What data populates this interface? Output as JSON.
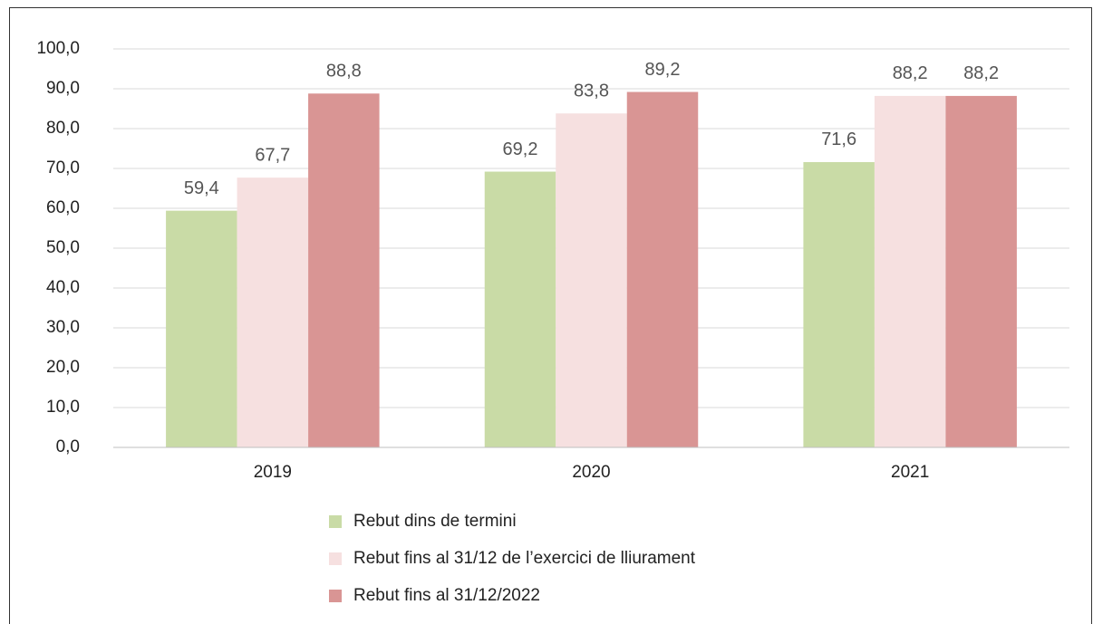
{
  "chart_data": {
    "type": "bar",
    "categories": [
      "2019",
      "2020",
      "2021"
    ],
    "series": [
      {
        "name": "Rebut dins de termini",
        "color": "#c9dba6",
        "values": [
          59.4,
          69.2,
          71.6
        ],
        "value_labels": [
          "59,4",
          "69,2",
          "71,6"
        ]
      },
      {
        "name": "Rebut fins al 31/12 de l’exercici de lliurament",
        "color": "#f6e0e0",
        "values": [
          67.7,
          83.8,
          88.2
        ],
        "value_labels": [
          "67,7",
          "83,8",
          "88,2"
        ]
      },
      {
        "name": "Rebut fins al 31/12/2022",
        "color": "#d99594",
        "values": [
          88.8,
          89.2,
          88.2
        ],
        "value_labels": [
          "88,8",
          "89,2",
          "88,2"
        ]
      }
    ],
    "ylim": [
      0,
      100
    ],
    "yticks": [
      {
        "value": 0,
        "label": "0,0"
      },
      {
        "value": 10,
        "label": "10,0"
      },
      {
        "value": 20,
        "label": "20,0"
      },
      {
        "value": 30,
        "label": "30,0"
      },
      {
        "value": 40,
        "label": "40,0"
      },
      {
        "value": 50,
        "label": "50,0"
      },
      {
        "value": 60,
        "label": "60,0"
      },
      {
        "value": 70,
        "label": "70,0"
      },
      {
        "value": 80,
        "label": "80,0"
      },
      {
        "value": 90,
        "label": "90,0"
      },
      {
        "value": 100,
        "label": "100,0"
      }
    ],
    "grid": true,
    "legend": "bottom"
  }
}
